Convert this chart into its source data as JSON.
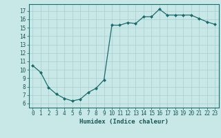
{
  "x": [
    0,
    1,
    2,
    3,
    4,
    5,
    6,
    7,
    8,
    9,
    10,
    11,
    12,
    13,
    14,
    15,
    16,
    17,
    18,
    19,
    20,
    21,
    22,
    23
  ],
  "y": [
    10.5,
    9.7,
    7.9,
    7.1,
    6.6,
    6.3,
    6.5,
    7.3,
    7.8,
    8.8,
    15.3,
    15.3,
    15.6,
    15.5,
    16.3,
    16.3,
    17.2,
    16.5,
    16.5,
    16.5,
    16.5,
    16.1,
    15.7,
    15.4
  ],
  "xlabel": "Humidex (Indice chaleur)",
  "xlim": [
    -0.5,
    23.5
  ],
  "ylim": [
    5.5,
    17.8
  ],
  "yticks": [
    6,
    7,
    8,
    9,
    10,
    11,
    12,
    13,
    14,
    15,
    16,
    17
  ],
  "xticks": [
    0,
    1,
    2,
    3,
    4,
    5,
    6,
    7,
    8,
    9,
    10,
    11,
    12,
    13,
    14,
    15,
    16,
    17,
    18,
    19,
    20,
    21,
    22,
    23
  ],
  "line_color": "#1a6b6b",
  "marker_color": "#1a6b6b",
  "bg_color": "#c8e8e8",
  "grid_color": "#a8cccc",
  "font_color": "#1a5555",
  "xlabel_fontsize": 6.5,
  "tick_fontsize": 5.5
}
